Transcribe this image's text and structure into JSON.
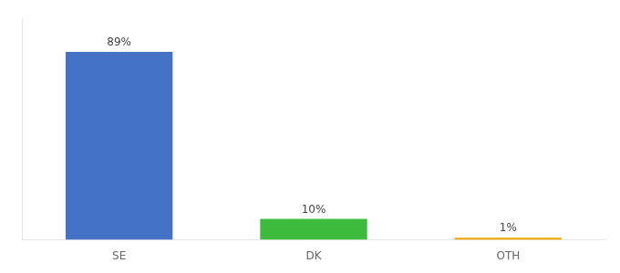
{
  "chart_data": {
    "type": "bar",
    "categories": [
      "SE",
      "DK",
      "OTH"
    ],
    "values": [
      89,
      10,
      1
    ],
    "value_labels": [
      "89%",
      "10%",
      "1%"
    ],
    "colors": [
      "#4472c4",
      "#3dbb3d",
      "#f0a500"
    ],
    "ylim": [
      0,
      105
    ],
    "data_labels": true,
    "grid": false,
    "tick_labels": "x"
  }
}
